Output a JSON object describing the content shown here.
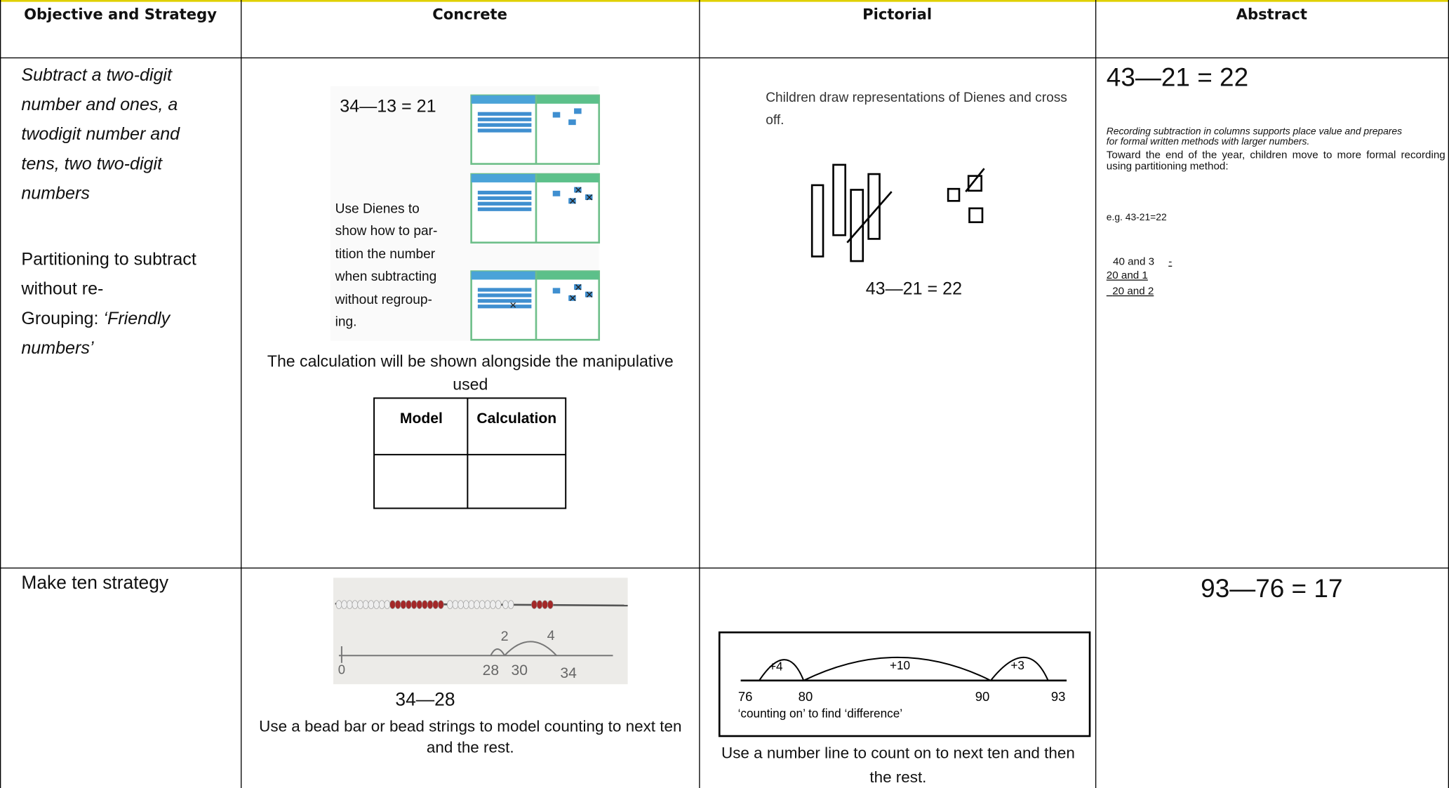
{
  "header": {
    "columns": [
      "Objective and Strategy",
      "Concrete",
      "Pictorial",
      "Abstract"
    ]
  },
  "rows": [
    {
      "objective": "Subtract a two-digit number and ones, a twodigit number and tens, two two-digit numbers",
      "strategy": "Partitioning to subtract without re-",
      "strategy_continued": "Grouping:",
      "strategy_emphasis": "‘Friendly numbers’",
      "concrete": {
        "equation": "34—13 = 21",
        "instruction_lines": [
          "Use Dienes to",
          "show how to par-",
          "tition the number",
          "when subtracting",
          "without regroup-",
          "ing."
        ],
        "caption": "The calculation will be shown alongside the manipulative used",
        "table_headers": [
          "Model",
          "Calculation"
        ]
      },
      "pictorial": {
        "text": "Children draw representations of Dienes and cross off.",
        "equation": "43—21 = 22"
      },
      "abstract": {
        "equation": "43—21 = 22",
        "note": "Recording subtraction in columns supports place value and prepares for formal written methods with larger numbers.",
        "text": "Toward the end of the year, children move to more formal recording using partitioning method:",
        "example": "e.g. 43-21=22",
        "working": [
          "40 and 3",
          "-",
          "20 and 1",
          "20 and 2"
        ]
      }
    },
    {
      "objective": "Make ten strategy",
      "concrete": {
        "figure_labels": [
          "2",
          "4",
          "0",
          "28",
          "30",
          "34"
        ],
        "equation": "34—28",
        "caption": "Use a bead bar or bead strings to model counting to next ten and the rest."
      },
      "pictorial": {
        "arc_labels": [
          "+4",
          "+10",
          "+3"
        ],
        "axis_labels": [
          "76",
          "80",
          "90",
          "93"
        ],
        "figure_caption": "‘counting on’ to find ‘difference’",
        "caption": "Use a number line to count on to next ten and then the rest."
      },
      "abstract": {
        "equation": "93—76 = 17"
      }
    }
  ]
}
